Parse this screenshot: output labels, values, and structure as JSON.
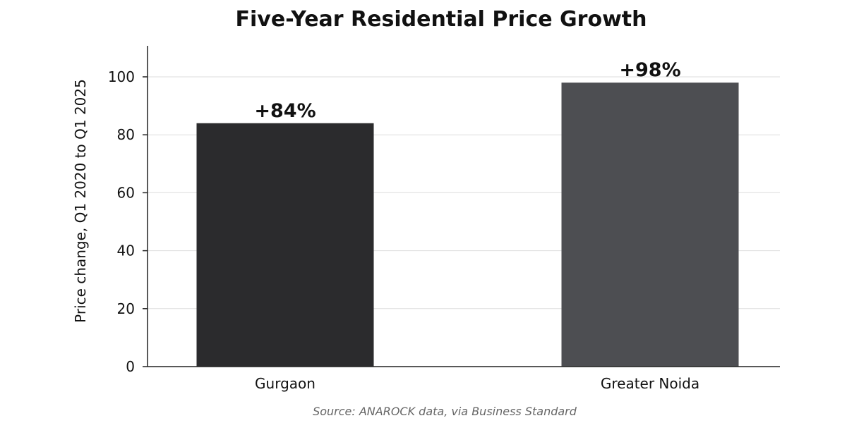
{
  "chart_data": {
    "type": "bar",
    "title": "Five-Year Residential Price Growth",
    "xlabel": "",
    "ylabel": "Price change, Q1 2020 to Q1 2025",
    "categories": [
      "Gurgaon",
      "Greater Noida"
    ],
    "values": [
      84,
      98
    ],
    "value_labels": [
      "+84%",
      "+98%"
    ],
    "bar_colors": [
      "#2b2b2d",
      "#4d4e52"
    ],
    "ylim": [
      0,
      110
    ],
    "yticks": [
      0,
      20,
      40,
      60,
      80,
      100
    ],
    "grid": "horizontal",
    "legend": "none",
    "source": "Source: ANAROCK data, via Business Standard"
  }
}
